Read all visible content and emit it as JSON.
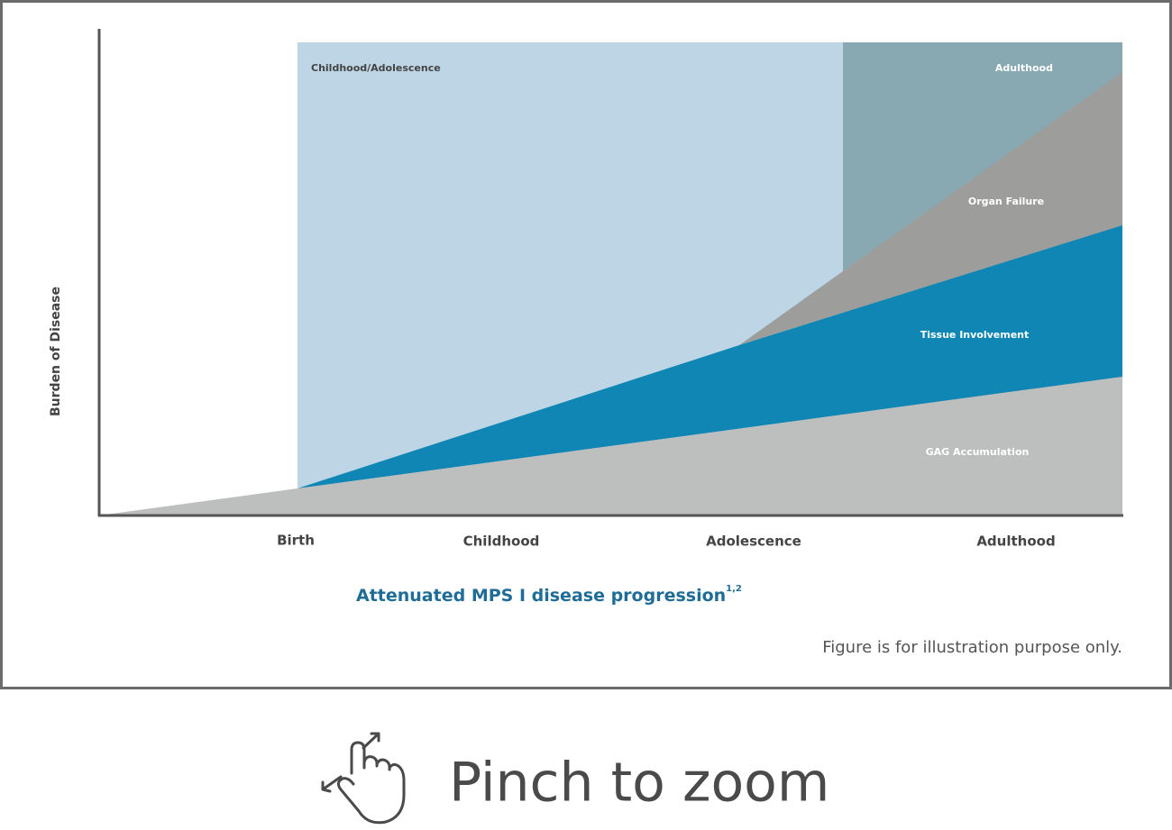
{
  "figure": {
    "y_axis_label": "Burden of Disease",
    "regions": [
      "Childhood/Adolescence",
      "Adulthood"
    ],
    "layers": [
      "Organ Failure",
      "Tissue Involvement",
      "GAG Accumulation"
    ],
    "x_labels": [
      "Birth",
      "Childhood",
      "Adolescence",
      "Adulthood"
    ],
    "caption": "Attenuated MPS I disease progression",
    "caption_superscript": "1,2",
    "note": "Figure is for illustration purpose only."
  },
  "hint": "Pinch to zoom"
}
